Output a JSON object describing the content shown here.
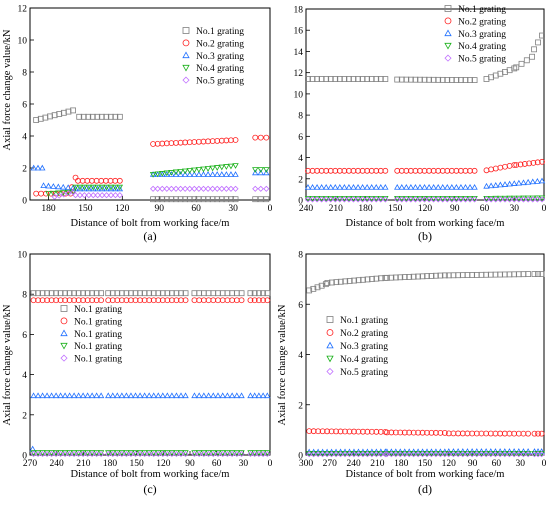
{
  "figure": {
    "panels": [
      "(a)",
      "(b)",
      "(c)",
      "(d)"
    ],
    "ylabel": "Axial force change value/kN",
    "xlabel": "Distance of bolt from working face/m"
  },
  "colors": {
    "No.1": "#808080",
    "No.2": "#ff2020",
    "No.3": "#1e6fff",
    "No.4": "#18b018",
    "No.5": "#c070ff"
  },
  "chart_data": [
    {
      "type": "scatter",
      "panel_label": "(a)",
      "xlabel": "Distance of bolt from working face/m",
      "ylabel": "Axial force change value/kN",
      "xlim": [
        195,
        0
      ],
      "ylim": [
        0,
        12
      ],
      "xticks": [
        180,
        150,
        120,
        90,
        60,
        30,
        0
      ],
      "yticks": [
        0,
        2,
        4,
        6,
        8,
        10,
        12
      ],
      "grid": false,
      "legend_position": "top-right",
      "legend": [
        "No.1 grating",
        "No.2 grating",
        "No.3 grating",
        "No.4 grating",
        "No.5 grating"
      ],
      "series": [
        {
          "name": "No.1 grating",
          "marker": "square",
          "segments": [
            {
              "x_from": 190,
              "x_to": 160,
              "y_from": 5.0,
              "y_to": 5.6
            },
            {
              "x_from": 155,
              "x_to": 122,
              "y_from": 5.2,
              "y_to": 5.2
            },
            {
              "x_from": 95,
              "x_to": 28,
              "y_from": 0.05,
              "y_to": 0.05
            },
            {
              "x_from": 12,
              "x_to": 3,
              "y_from": 0.05,
              "y_to": 0.05
            }
          ]
        },
        {
          "name": "No.2 grating",
          "marker": "circle",
          "segments": [
            {
              "x_from": 190,
              "x_to": 162,
              "y_from": 0.4,
              "y_to": 0.4
            },
            {
              "x_from": 161,
              "x_to": 158,
              "y_from": 0.8,
              "y_to": 1.4
            },
            {
              "x_from": 156,
              "x_to": 122,
              "y_from": 1.2,
              "y_to": 1.2
            },
            {
              "x_from": 95,
              "x_to": 28,
              "y_from": 3.5,
              "y_to": 3.75
            },
            {
              "x_from": 12,
              "x_to": 3,
              "y_from": 3.9,
              "y_to": 3.9
            }
          ]
        },
        {
          "name": "No.3 grating",
          "marker": "triangle-up",
          "segments": [
            {
              "x_from": 192,
              "x_to": 185,
              "y_from": 2.0,
              "y_to": 2.0
            },
            {
              "x_from": 184,
              "x_to": 160,
              "y_from": 0.9,
              "y_to": 0.75
            },
            {
              "x_from": 158,
              "x_to": 122,
              "y_from": 0.7,
              "y_to": 0.7
            },
            {
              "x_from": 95,
              "x_to": 28,
              "y_from": 1.6,
              "y_to": 1.6
            },
            {
              "x_from": 12,
              "x_to": 3,
              "y_from": 1.7,
              "y_to": 1.7
            }
          ]
        },
        {
          "name": "No.4 grating",
          "marker": "triangle-down",
          "segments": [
            {
              "x_from": 180,
              "x_to": 160,
              "y_from": 0.4,
              "y_to": 0.5
            },
            {
              "x_from": 158,
              "x_to": 122,
              "y_from": 0.8,
              "y_to": 0.8
            },
            {
              "x_from": 95,
              "x_to": 28,
              "y_from": 1.6,
              "y_to": 2.15
            },
            {
              "x_from": 12,
              "x_to": 3,
              "y_from": 1.9,
              "y_to": 1.9
            }
          ]
        },
        {
          "name": "No.5 grating",
          "marker": "diamond",
          "segments": [
            {
              "x_from": 175,
              "x_to": 160,
              "y_from": 0.2,
              "y_to": 0.5
            },
            {
              "x_from": 158,
              "x_to": 122,
              "y_from": 0.3,
              "y_to": 0.3
            },
            {
              "x_from": 95,
              "x_to": 28,
              "y_from": 0.7,
              "y_to": 0.7
            },
            {
              "x_from": 12,
              "x_to": 3,
              "y_from": 0.7,
              "y_to": 0.7
            }
          ]
        }
      ]
    },
    {
      "type": "scatter",
      "panel_label": "(b)",
      "xlabel": "Distance of bolt from working face/m",
      "ylabel": "",
      "xlim": [
        240,
        0
      ],
      "ylim": [
        0,
        18
      ],
      "xticks": [
        240,
        210,
        180,
        150,
        120,
        90,
        60,
        30,
        0
      ],
      "yticks": [
        0,
        2,
        4,
        6,
        8,
        10,
        12,
        14,
        16,
        18
      ],
      "grid": false,
      "legend_position": "top-right",
      "legend": [
        "No.1 grating",
        "No.2 grating",
        "No.3 grating",
        "No.4 grating",
        "No.5 grating"
      ],
      "series": [
        {
          "name": "No.1 grating",
          "marker": "square",
          "segments": [
            {
              "x_from": 238,
              "x_to": 160,
              "y_from": 11.4,
              "y_to": 11.4
            },
            {
              "x_from": 148,
              "x_to": 70,
              "y_from": 11.35,
              "y_to": 11.3
            },
            {
              "x_from": 58,
              "x_to": 30,
              "y_from": 11.4,
              "y_to": 12.4
            },
            {
              "x_from": 28,
              "x_to": 12,
              "y_from": 12.5,
              "y_to": 13.5
            },
            {
              "x_from": 10,
              "x_to": 2,
              "y_from": 14.2,
              "y_to": 15.5
            }
          ]
        },
        {
          "name": "No.2 grating",
          "marker": "circle",
          "segments": [
            {
              "x_from": 238,
              "x_to": 160,
              "y_from": 2.75,
              "y_to": 2.75
            },
            {
              "x_from": 148,
              "x_to": 70,
              "y_from": 2.75,
              "y_to": 2.75
            },
            {
              "x_from": 58,
              "x_to": 30,
              "y_from": 2.8,
              "y_to": 3.3
            },
            {
              "x_from": 28,
              "x_to": 2,
              "y_from": 3.3,
              "y_to": 3.6
            }
          ]
        },
        {
          "name": "No.3 grating",
          "marker": "triangle-up",
          "segments": [
            {
              "x_from": 238,
              "x_to": 160,
              "y_from": 1.2,
              "y_to": 1.2
            },
            {
              "x_from": 148,
              "x_to": 70,
              "y_from": 1.2,
              "y_to": 1.2
            },
            {
              "x_from": 58,
              "x_to": 2,
              "y_from": 1.3,
              "y_to": 1.8
            }
          ]
        },
        {
          "name": "No.4 grating",
          "marker": "triangle-down",
          "segments": [
            {
              "x_from": 238,
              "x_to": 160,
              "y_from": 0.15,
              "y_to": 0.15
            },
            {
              "x_from": 148,
              "x_to": 70,
              "y_from": 0.15,
              "y_to": 0.15
            },
            {
              "x_from": 58,
              "x_to": 2,
              "y_from": 0.15,
              "y_to": 0.2
            }
          ]
        },
        {
          "name": "No.5 grating",
          "marker": "diamond",
          "segments": [
            {
              "x_from": 238,
              "x_to": 160,
              "y_from": 0.05,
              "y_to": 0.05
            },
            {
              "x_from": 148,
              "x_to": 70,
              "y_from": 0.05,
              "y_to": 0.05
            },
            {
              "x_from": 58,
              "x_to": 2,
              "y_from": 0.05,
              "y_to": 0.05
            }
          ]
        }
      ]
    },
    {
      "type": "scatter",
      "panel_label": "(c)",
      "xlabel": "Distance of bolt from working face/m",
      "ylabel": "Axial force change value/kN",
      "xlim": [
        270,
        0
      ],
      "ylim": [
        0,
        10
      ],
      "xticks": [
        270,
        240,
        210,
        180,
        150,
        120,
        90,
        60,
        30,
        0
      ],
      "yticks": [
        0,
        2,
        4,
        6,
        8,
        10
      ],
      "grid": false,
      "legend_position": "middle-left",
      "legend": [
        "No.1 grating",
        "No.1 grating",
        "No.1 grating",
        "No.1 grating",
        "No.1 grating"
      ],
      "series": [
        {
          "name": "No.1 grating",
          "marker": "square",
          "segments": [
            {
              "x_from": 266,
              "x_to": 190,
              "y_from": 8.05,
              "y_to": 8.05
            },
            {
              "x_from": 182,
              "x_to": 95,
              "y_from": 8.05,
              "y_to": 8.05
            },
            {
              "x_from": 85,
              "x_to": 32,
              "y_from": 8.05,
              "y_to": 8.05
            },
            {
              "x_from": 22,
              "x_to": 3,
              "y_from": 8.05,
              "y_to": 8.05
            }
          ]
        },
        {
          "name": "No.1 grating",
          "marker": "circle",
          "segments": [
            {
              "x_from": 266,
              "x_to": 190,
              "y_from": 7.7,
              "y_to": 7.7
            },
            {
              "x_from": 182,
              "x_to": 95,
              "y_from": 7.7,
              "y_to": 7.7
            },
            {
              "x_from": 85,
              "x_to": 32,
              "y_from": 7.7,
              "y_to": 7.7
            },
            {
              "x_from": 22,
              "x_to": 3,
              "y_from": 7.7,
              "y_to": 7.7
            }
          ]
        },
        {
          "name": "No.1 grating",
          "marker": "triangle-up",
          "segments": [
            {
              "x_from": 267,
              "x_to": 267,
              "y_from": 0.3,
              "y_to": 0.3
            },
            {
              "x_from": 266,
              "x_to": 190,
              "y_from": 2.95,
              "y_to": 2.95
            },
            {
              "x_from": 182,
              "x_to": 95,
              "y_from": 2.95,
              "y_to": 2.95
            },
            {
              "x_from": 85,
              "x_to": 32,
              "y_from": 2.95,
              "y_to": 2.95
            },
            {
              "x_from": 22,
              "x_to": 3,
              "y_from": 2.95,
              "y_to": 2.95
            }
          ]
        },
        {
          "name": "No.1 grating",
          "marker": "triangle-down",
          "segments": [
            {
              "x_from": 266,
              "x_to": 190,
              "y_from": 0.12,
              "y_to": 0.12
            },
            {
              "x_from": 182,
              "x_to": 95,
              "y_from": 0.12,
              "y_to": 0.12
            },
            {
              "x_from": 85,
              "x_to": 32,
              "y_from": 0.12,
              "y_to": 0.12
            },
            {
              "x_from": 22,
              "x_to": 3,
              "y_from": 0.12,
              "y_to": 0.12
            }
          ]
        },
        {
          "name": "No.1 grating",
          "marker": "diamond",
          "segments": [
            {
              "x_from": 266,
              "x_to": 190,
              "y_from": 0.05,
              "y_to": 0.05
            },
            {
              "x_from": 182,
              "x_to": 95,
              "y_from": 0.05,
              "y_to": 0.05
            },
            {
              "x_from": 85,
              "x_to": 32,
              "y_from": 0.05,
              "y_to": 0.05
            },
            {
              "x_from": 22,
              "x_to": 3,
              "y_from": 0.05,
              "y_to": 0.05
            }
          ]
        }
      ]
    },
    {
      "type": "scatter",
      "panel_label": "(d)",
      "xlabel": "Distance of bolt from working face/m",
      "ylabel": "Axial force change value/kN",
      "xlim": [
        300,
        0
      ],
      "ylim": [
        0,
        8
      ],
      "xticks": [
        300,
        270,
        240,
        210,
        180,
        150,
        120,
        90,
        60,
        30,
        0
      ],
      "yticks": [
        0,
        2,
        4,
        6,
        8
      ],
      "grid": false,
      "legend_position": "middle-left",
      "legend": [
        "No.1 grating",
        "No.2 grating",
        "No.3 grating",
        "No.4 grating",
        "No.5 grating"
      ],
      "series": [
        {
          "name": "No.1 grating",
          "marker": "square",
          "segments": [
            {
              "x_from": 296,
              "x_to": 275,
              "y_from": 6.55,
              "y_to": 6.8
            },
            {
              "x_from": 273,
              "x_to": 200,
              "y_from": 6.85,
              "y_to": 7.05
            },
            {
              "x_from": 198,
              "x_to": 125,
              "y_from": 7.05,
              "y_to": 7.15
            },
            {
              "x_from": 120,
              "x_to": 20,
              "y_from": 7.15,
              "y_to": 7.2
            },
            {
              "x_from": 12,
              "x_to": 3,
              "y_from": 7.2,
              "y_to": 7.2
            }
          ]
        },
        {
          "name": "No.2 grating",
          "marker": "circle",
          "segments": [
            {
              "x_from": 296,
              "x_to": 200,
              "y_from": 0.95,
              "y_to": 0.92
            },
            {
              "x_from": 198,
              "x_to": 125,
              "y_from": 0.9,
              "y_to": 0.88
            },
            {
              "x_from": 120,
              "x_to": 20,
              "y_from": 0.86,
              "y_to": 0.85
            },
            {
              "x_from": 12,
              "x_to": 3,
              "y_from": 0.85,
              "y_to": 0.85
            }
          ]
        },
        {
          "name": "No.3 grating",
          "marker": "triangle-up",
          "segments": [
            {
              "x_from": 296,
              "x_to": 200,
              "y_from": 0.12,
              "y_to": 0.13
            },
            {
              "x_from": 198,
              "x_to": 125,
              "y_from": 0.13,
              "y_to": 0.13
            },
            {
              "x_from": 120,
              "x_to": 20,
              "y_from": 0.14,
              "y_to": 0.14
            },
            {
              "x_from": 12,
              "x_to": 3,
              "y_from": 0.14,
              "y_to": 0.14
            }
          ]
        },
        {
          "name": "No.4 grating",
          "marker": "triangle-down",
          "segments": [
            {
              "x_from": 296,
              "x_to": 200,
              "y_from": 0.06,
              "y_to": 0.06
            },
            {
              "x_from": 198,
              "x_to": 125,
              "y_from": 0.06,
              "y_to": 0.06
            },
            {
              "x_from": 120,
              "x_to": 20,
              "y_from": 0.06,
              "y_to": 0.06
            },
            {
              "x_from": 12,
              "x_to": 3,
              "y_from": 0.06,
              "y_to": 0.06
            }
          ]
        },
        {
          "name": "No.5 grating",
          "marker": "diamond",
          "segments": [
            {
              "x_from": 296,
              "x_to": 200,
              "y_from": 0.03,
              "y_to": 0.03
            },
            {
              "x_from": 198,
              "x_to": 125,
              "y_from": 0.03,
              "y_to": 0.03
            },
            {
              "x_from": 120,
              "x_to": 20,
              "y_from": 0.03,
              "y_to": 0.03
            },
            {
              "x_from": 12,
              "x_to": 3,
              "y_from": 0.03,
              "y_to": 0.03
            }
          ]
        }
      ]
    }
  ]
}
